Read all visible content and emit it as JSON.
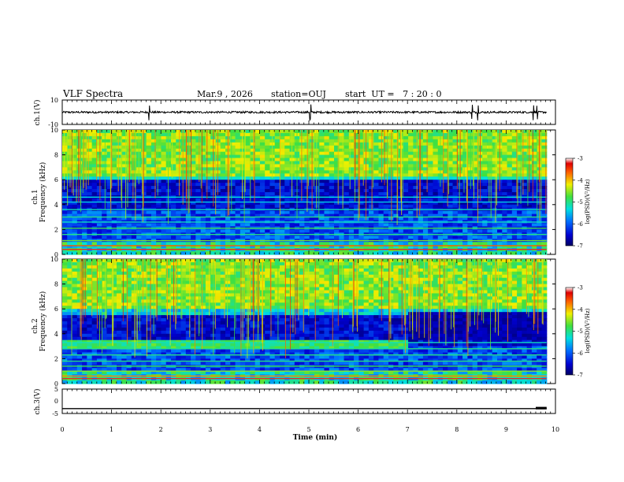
{
  "header": {
    "title": "VLF Spectra",
    "date": "Mar.9 , 2026",
    "station": "station=OUJ",
    "start": "start  UT =   7 : 20 : 0"
  },
  "colors": {
    "low": "#00008b",
    "mid": "#00c8c8",
    "high": "#e00000",
    "trace": "#000000"
  },
  "chart_data": [
    {
      "id": "ch1-waveform",
      "type": "line",
      "ylabel": "ch.1(V)",
      "ylim": [
        -10,
        10
      ],
      "y_ticks": [
        "10",
        "-10"
      ],
      "x_range_min": [
        0,
        9.82
      ],
      "baseline_v": 0,
      "spike_times_min": [
        1.76,
        5.03,
        8.31,
        8.43,
        9.55,
        9.63
      ]
    },
    {
      "id": "ch1-spectrogram",
      "type": "heatmap",
      "ylabel_channel": "ch.1",
      "ylabel": "Frequency (kHz)",
      "ylim": [
        0,
        10
      ],
      "y_ticks": [
        "0",
        "2",
        "4",
        "6",
        "8",
        "10"
      ],
      "xlim": [
        0,
        10
      ],
      "data_end_min": 9.82,
      "noise_band_khz": [
        6.3,
        10
      ],
      "quiet_band_khz": [
        3.5,
        6.0
      ],
      "colorbar": {
        "label": "log(PSD)(V²/Hz)",
        "range": [
          -7,
          -3
        ],
        "ticks": [
          "-3",
          "-4",
          "-5",
          "-6",
          "-7"
        ]
      }
    },
    {
      "id": "ch2-spectrogram",
      "type": "heatmap",
      "ylabel_channel": "ch.2",
      "ylabel": "Frequency (kHz)",
      "ylim": [
        0,
        10
      ],
      "y_ticks": [
        "0",
        "2",
        "4",
        "6",
        "8",
        "10"
      ],
      "xlim": [
        0,
        10
      ],
      "data_end_min": 9.82,
      "noise_band_khz": [
        6.0,
        10
      ],
      "quiet_band_khz": [
        3.0,
        5.5
      ],
      "colorbar": {
        "label": "log(PSD)(V²/Hz)",
        "range": [
          -7,
          -3
        ],
        "ticks": [
          "-3",
          "-4",
          "-5",
          "-6",
          "-7"
        ]
      }
    },
    {
      "id": "ch3-waveform",
      "type": "line",
      "ylabel": "ch.3(V)",
      "ylim": [
        -5,
        5
      ],
      "y_ticks": [
        "5",
        "0",
        "-5"
      ],
      "x_range_min": [
        0,
        9.82
      ],
      "level_v": -3,
      "end_level_v": -2.3
    }
  ],
  "xaxis": {
    "label": "Time (min)",
    "ticks": [
      "0",
      "1",
      "2",
      "3",
      "4",
      "5",
      "6",
      "7",
      "8",
      "9",
      "10"
    ],
    "xlim": [
      0,
      10
    ]
  }
}
